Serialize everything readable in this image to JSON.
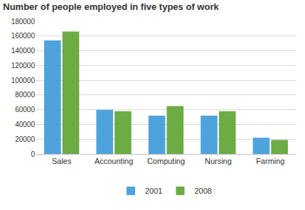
{
  "chart_data": {
    "type": "bar",
    "title": "Number of people employed in five types of work",
    "categories": [
      "Sales",
      "Accounting",
      "Computing",
      "Nursing",
      "Farming"
    ],
    "series": [
      {
        "name": "2001",
        "color": "#4fa3dd",
        "values": [
          154000,
          60000,
          52000,
          52000,
          22000
        ]
      },
      {
        "name": "2008",
        "color": "#6dab45",
        "values": [
          166000,
          58000,
          65000,
          58000,
          19000
        ]
      }
    ],
    "ylim": [
      0,
      180000
    ],
    "yticks": [
      0,
      20000,
      40000,
      60000,
      80000,
      100000,
      120000,
      140000,
      160000,
      180000
    ],
    "grid": true,
    "legend": "bottom"
  }
}
